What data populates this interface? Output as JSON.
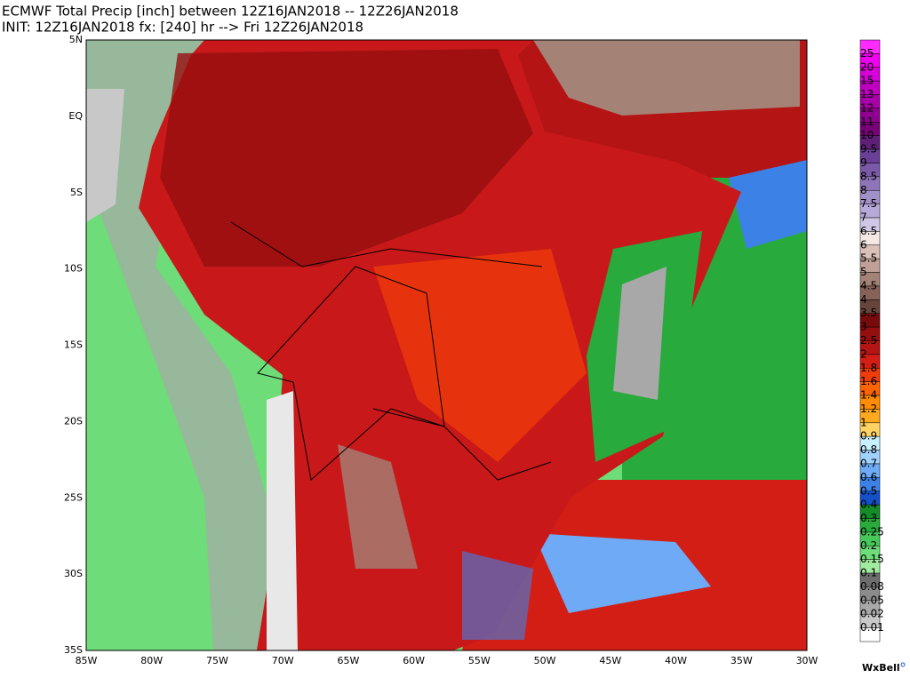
{
  "header": {
    "title": "ECMWF Total Precip [inch] between 12Z16JAN2018 -- 12Z26JAN2018",
    "subtitle": "INIT: 12Z16JAN2018 fx: [240] hr --> Fri 12Z26JAN2018"
  },
  "map": {
    "lat_labels": [
      "5N",
      "EQ",
      "5S",
      "10S",
      "15S",
      "20S",
      "25S",
      "30S",
      "35S"
    ],
    "lon_labels": [
      "85W",
      "80W",
      "75W",
      "70W",
      "65W",
      "60W",
      "55W",
      "50W",
      "45W",
      "40W",
      "35W",
      "30W"
    ]
  },
  "colorbar": {
    "labels": [
      "25",
      "20",
      "15",
      "13",
      "12",
      "11",
      "10",
      "9.5",
      "9",
      "8.5",
      "8",
      "7.5",
      "7",
      "6.5",
      "6",
      "5.5",
      "5",
      "4.5",
      "4",
      "3.5",
      "3",
      "2.5",
      "2",
      "1.8",
      "1.6",
      "1.4",
      "1.2",
      "1",
      "0.9",
      "0.8",
      "0.7",
      "0.6",
      "0.5",
      "0.4",
      "0.3",
      "0.25",
      "0.2",
      "0.15",
      "0.1",
      "0.08",
      "0.05",
      "0.02",
      "0.01"
    ],
    "colors": [
      "#ff2bff",
      "#f000f0",
      "#d800d8",
      "#c000c0",
      "#a800a8",
      "#900090",
      "#780078",
      "#5e1f78",
      "#6a3f96",
      "#7a5aa8",
      "#8e74b8",
      "#a290c8",
      "#b8aad8",
      "#d0c6e6",
      "#f4e8e4",
      "#d9c0b8",
      "#c0a096",
      "#a48276",
      "#866258",
      "#66443a",
      "#780c0c",
      "#960f0f",
      "#b41414",
      "#d21e14",
      "#f03c0a",
      "#ff6400",
      "#ff8c00",
      "#ffaa1e",
      "#ffd264",
      "#c8f0ff",
      "#a0d2ff",
      "#6eaaf5",
      "#3c82e6",
      "#1450c8",
      "#148c28",
      "#28aa3c",
      "#46c85a",
      "#6edc78",
      "#a0eba0",
      "#6e6e6e",
      "#8c8c8c",
      "#a8a8a8",
      "#c8c8c8",
      "#ffffff"
    ]
  },
  "logo": "WxBell"
}
